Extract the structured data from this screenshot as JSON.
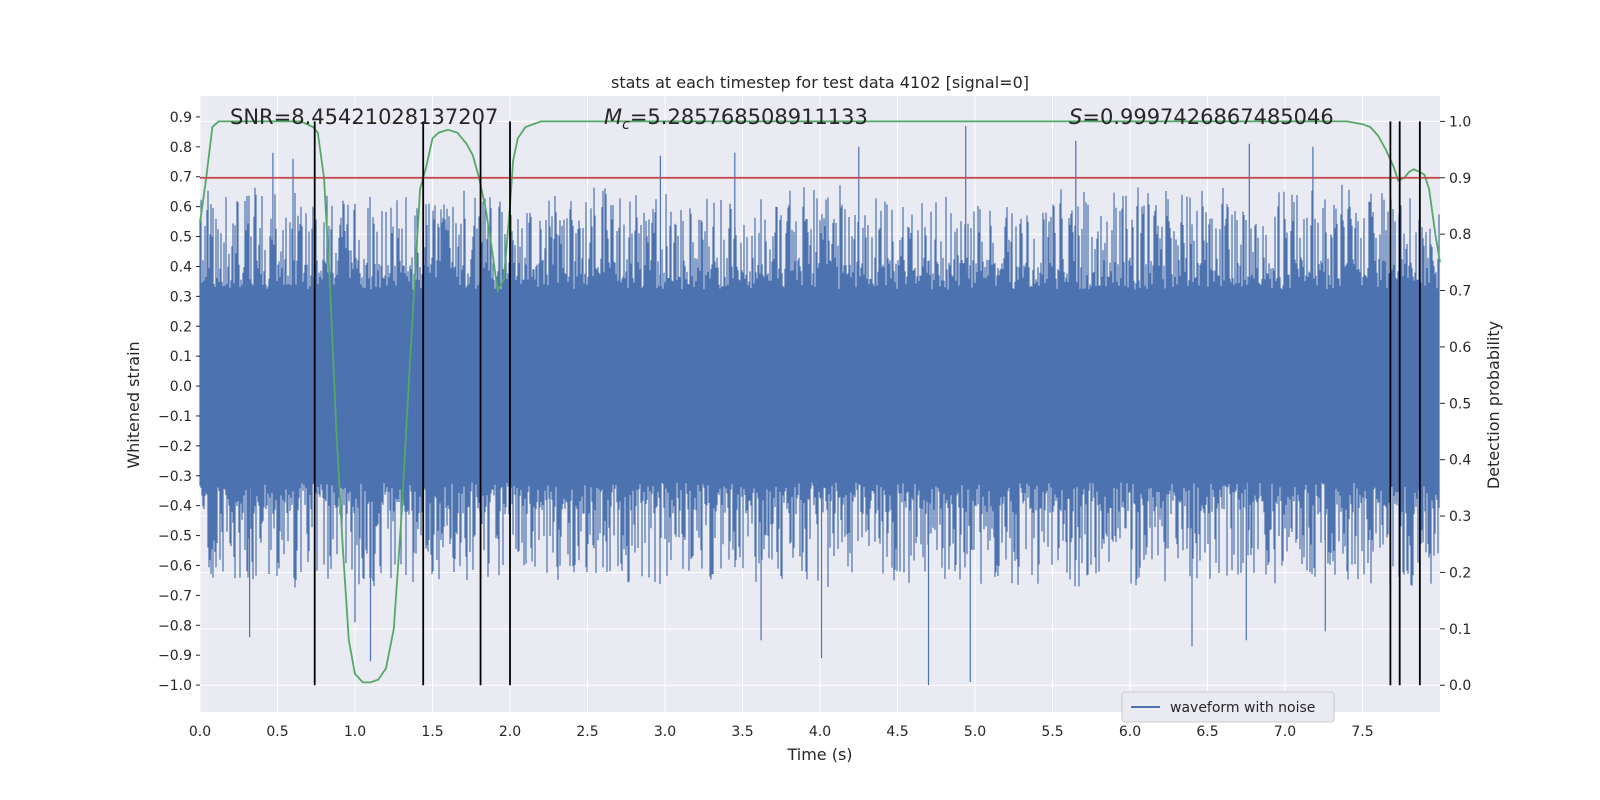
{
  "chart_data": {
    "type": "line",
    "title": "stats at each timestep for test data 4102 [signal=0]",
    "xlabel": "Time (s)",
    "ylabel": "Whitened strain",
    "y2label": "Detection probability",
    "xlim": [
      0.0,
      8.0
    ],
    "ylim": [
      -1.09,
      0.97
    ],
    "y2lim": [
      -0.0475,
      1.045
    ],
    "grid": true,
    "legend": {
      "placement": "lower-right",
      "entries": [
        "waveform with noise"
      ]
    },
    "x_ticks": [
      "0.0",
      "0.5",
      "1.0",
      "1.5",
      "2.0",
      "2.5",
      "3.0",
      "3.5",
      "4.0",
      "4.5",
      "5.0",
      "5.5",
      "6.0",
      "6.5",
      "7.0",
      "7.5"
    ],
    "y_ticks": [
      "0.9",
      "0.8",
      "0.7",
      "0.6",
      "0.5",
      "0.4",
      "0.3",
      "0.2",
      "0.1",
      "0.0",
      "−0.1",
      "−0.2",
      "−0.3",
      "−0.4",
      "−0.5",
      "−0.6",
      "−0.7",
      "−0.8",
      "−0.9",
      "−1.0"
    ],
    "y2_ticks": [
      "1.0",
      "0.9",
      "0.8",
      "0.7",
      "0.6",
      "0.5",
      "0.4",
      "0.3",
      "0.2",
      "0.1",
      "0.0"
    ],
    "annotations": {
      "snr": "SNR=8.45421028137207",
      "mc_symbol": "M",
      "mc_sub": "c",
      "mc_value": "=5.285768508911133",
      "s_symbol": "S",
      "s_value": "=0.9997426867485046"
    },
    "series": [
      {
        "name": "waveform with noise",
        "axis": "left",
        "color": "#4c72b0",
        "description_kind": "noise",
        "envelope": {
          "core_min": -0.43,
          "core_max": 0.43,
          "typical_peak": 0.6
        },
        "notable_extremes": [
          {
            "x": 4.94,
            "y": 0.87
          },
          {
            "x": 4.7,
            "y": -1.0
          },
          {
            "x": 4.97,
            "y": -0.99
          },
          {
            "x": 1.1,
            "y": -0.92
          },
          {
            "x": 1.0,
            "y": -0.79
          },
          {
            "x": 0.32,
            "y": -0.84
          },
          {
            "x": 4.01,
            "y": -0.91
          },
          {
            "x": 3.62,
            "y": -0.85
          },
          {
            "x": 0.47,
            "y": 0.78
          },
          {
            "x": 0.6,
            "y": 0.76
          },
          {
            "x": 2.97,
            "y": 0.77
          },
          {
            "x": 3.45,
            "y": 0.78
          },
          {
            "x": 4.25,
            "y": 0.8
          },
          {
            "x": 5.65,
            "y": 0.82
          },
          {
            "x": 6.77,
            "y": 0.81
          },
          {
            "x": 7.18,
            "y": 0.8
          },
          {
            "x": 6.4,
            "y": -0.87
          },
          {
            "x": 6.75,
            "y": -0.85
          },
          {
            "x": 7.26,
            "y": -0.82
          }
        ]
      },
      {
        "name": "detection probability",
        "axis": "right",
        "color": "#55a868",
        "x": [
          0.0,
          0.04,
          0.08,
          0.12,
          0.2,
          0.3,
          0.5,
          0.65,
          0.73,
          0.76,
          0.8,
          0.84,
          0.88,
          0.92,
          0.96,
          1.0,
          1.05,
          1.1,
          1.15,
          1.2,
          1.25,
          1.3,
          1.36,
          1.42,
          1.46,
          1.5,
          1.54,
          1.6,
          1.66,
          1.72,
          1.76,
          1.8,
          1.84,
          1.88,
          1.92,
          1.96,
          2.0,
          2.02,
          2.05,
          2.1,
          2.2,
          2.5,
          3.0,
          4.0,
          5.0,
          6.0,
          7.0,
          7.4,
          7.5,
          7.55,
          7.6,
          7.65,
          7.7,
          7.73,
          7.77,
          7.8,
          7.83,
          7.87,
          7.9,
          7.93,
          7.97,
          8.0
        ],
        "y": [
          0.82,
          0.9,
          0.99,
          1.0,
          1.0,
          1.0,
          1.0,
          1.0,
          0.99,
          0.98,
          0.9,
          0.7,
          0.45,
          0.25,
          0.08,
          0.02,
          0.005,
          0.005,
          0.01,
          0.03,
          0.1,
          0.3,
          0.6,
          0.88,
          0.92,
          0.97,
          0.98,
          0.985,
          0.98,
          0.96,
          0.94,
          0.9,
          0.85,
          0.78,
          0.7,
          0.72,
          0.85,
          0.93,
          0.97,
          0.99,
          1.0,
          1.0,
          1.0,
          1.0,
          1.0,
          1.0,
          1.0,
          1.0,
          0.995,
          0.99,
          0.975,
          0.95,
          0.92,
          0.895,
          0.9,
          0.91,
          0.915,
          0.91,
          0.905,
          0.88,
          0.8,
          0.75
        ]
      },
      {
        "name": "threshold",
        "axis": "right",
        "color": "#c44e52",
        "x": [
          0.0,
          8.0
        ],
        "y": [
          0.9,
          0.9
        ]
      }
    ],
    "vlines": {
      "color": "#000000",
      "y2_range": [
        0.0,
        1.0
      ],
      "x": [
        0.74,
        1.44,
        1.81,
        2.0,
        7.68,
        7.74,
        7.87
      ]
    }
  }
}
